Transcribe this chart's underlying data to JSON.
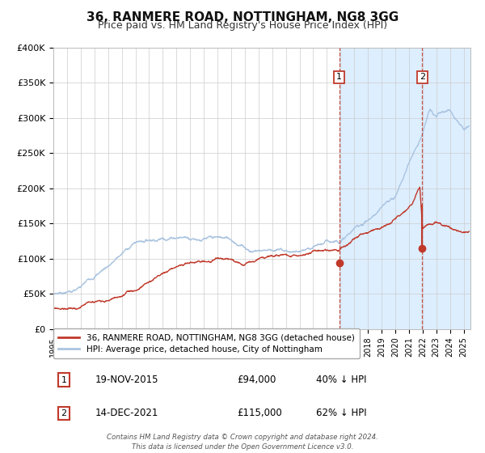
{
  "title": "36, RANMERE ROAD, NOTTINGHAM, NG8 3GG",
  "subtitle": "Price paid vs. HM Land Registry's House Price Index (HPI)",
  "ylim": [
    0,
    400000
  ],
  "yticks": [
    0,
    50000,
    100000,
    150000,
    200000,
    250000,
    300000,
    350000,
    400000
  ],
  "ytick_labels": [
    "£0",
    "£50K",
    "£100K",
    "£150K",
    "£200K",
    "£250K",
    "£300K",
    "£350K",
    "£400K"
  ],
  "xlim_start": 1995.0,
  "xlim_end": 2025.5,
  "hpi_color": "#aac4e0",
  "price_color": "#c0392b",
  "bg_color": "#ffffff",
  "grid_color": "#cccccc",
  "shade_color": "#ddeeff",
  "marker1_date": 2015.9,
  "marker1_price": 94000,
  "marker1_label": "19-NOV-2015",
  "marker1_price_label": "£94,000",
  "marker1_hpi_label": "40% ↓ HPI",
  "marker2_date": 2021.97,
  "marker2_price": 115000,
  "marker2_label": "14-DEC-2021",
  "marker2_price_label": "£115,000",
  "marker2_hpi_label": "62% ↓ HPI",
  "legend_line1": "36, RANMERE ROAD, NOTTINGHAM, NG8 3GG (detached house)",
  "legend_line2": "HPI: Average price, detached house, City of Nottingham",
  "footer_line1": "Contains HM Land Registry data © Crown copyright and database right 2024.",
  "footer_line2": "This data is licensed under the Open Government Licence v3.0."
}
